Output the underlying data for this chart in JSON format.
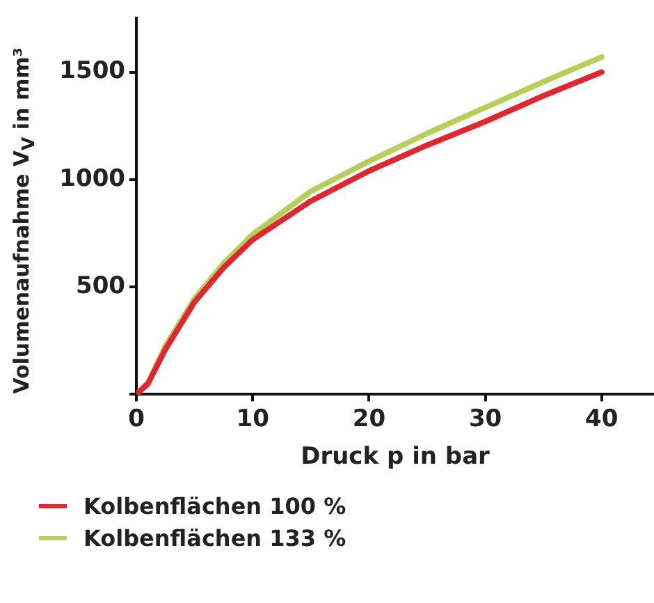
{
  "chart_data": {
    "type": "line",
    "xlabel": "Druck p in bar",
    "ylabel": "Volumenaufnahme V$_{V}$ in mm³",
    "xlim": [
      0,
      44.5
    ],
    "ylim": [
      0,
      1750
    ],
    "xticks": [
      0,
      10,
      20,
      30,
      40
    ],
    "yticks": [
      {
        "value": 0,
        "label": null
      },
      500,
      1000,
      1500
    ],
    "grid": false,
    "legend": "bottom",
    "marker": "none",
    "line_style": "solid",
    "series": [
      {
        "name": "Kolbenflächen 100 %",
        "color": "#e0262e",
        "x": [
          0,
          1,
          2.5,
          5,
          7.5,
          10,
          15,
          20,
          25,
          30,
          35,
          40
        ],
        "values": [
          0,
          50,
          210,
          430,
          590,
          720,
          900,
          1040,
          1160,
          1270,
          1390,
          1500
        ]
      },
      {
        "name": "Kolbenflächen 133 %",
        "color": "#b5cf5a",
        "x": [
          0,
          1,
          2.5,
          5,
          7.5,
          10,
          15,
          20,
          25,
          30,
          35,
          40
        ],
        "values": [
          0,
          55,
          225,
          445,
          610,
          745,
          945,
          1085,
          1215,
          1335,
          1455,
          1570
        ]
      }
    ]
  }
}
